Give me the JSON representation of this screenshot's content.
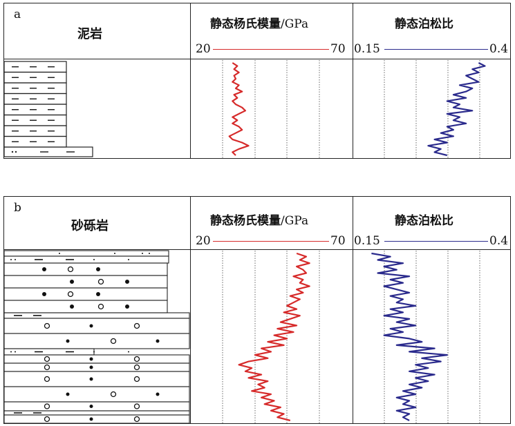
{
  "panels": [
    {
      "letter": "a",
      "lithology": "泥岩",
      "modulus_title": "静态杨氏模量",
      "modulus_unit": "/GPa",
      "modulus_min": "20",
      "modulus_max": "70",
      "poisson_title": "静态泊松比",
      "poisson_min": "0.15",
      "poisson_max": "0.4"
    },
    {
      "letter": "b",
      "lithology": "砂砾岩",
      "modulus_title": "静态杨氏模量",
      "modulus_unit": "/GPa",
      "modulus_min": "20",
      "modulus_max": "70",
      "poisson_title": "静态泊松比",
      "poisson_min": "0.15",
      "poisson_max": "0.4"
    }
  ],
  "colors": {
    "modulus": "#d62a2a",
    "poisson": "#2a2a8c",
    "grid": "#666666"
  },
  "chart_data": [
    {
      "type": "line",
      "panel": "a",
      "xlabel": "静态杨氏模量/GPa",
      "xlim": [
        20,
        70
      ],
      "series": [
        {
          "name": "静态杨氏模量",
          "values": [
            33,
            34.5,
            33.5,
            35,
            33.5,
            34,
            33,
            35,
            34,
            36,
            33.5,
            34.5,
            33,
            34,
            36,
            37,
            35,
            33,
            34.5,
            33,
            35,
            36,
            34,
            32,
            33,
            36,
            38,
            35,
            33,
            34
          ]
        },
        {
          "name": "静态泊松比",
          "values": [
            0.35,
            0.36,
            0.34,
            0.35,
            0.33,
            0.34,
            0.35,
            0.32,
            0.34,
            0.33,
            0.31,
            0.33,
            0.3,
            0.32,
            0.31,
            0.34,
            0.3,
            0.32,
            0.31,
            0.33,
            0.3,
            0.31,
            0.29,
            0.31,
            0.28,
            0.3,
            0.27,
            0.29,
            0.28,
            0.3
          ]
        }
      ]
    },
    {
      "type": "line",
      "panel": "b",
      "xlabel": "静态杨氏模量/GPa",
      "xlim": [
        20,
        70
      ],
      "series": [
        {
          "name": "静态杨氏模量",
          "values": [
            53,
            56,
            54,
            57,
            53,
            55,
            56,
            52,
            55,
            54,
            57,
            53,
            55,
            51,
            54,
            52,
            50,
            53,
            49,
            54,
            51,
            48,
            53,
            47,
            52,
            46,
            50,
            44,
            49,
            42,
            45,
            40,
            44,
            38,
            35,
            39,
            37,
            42,
            38,
            44,
            41,
            43,
            39,
            45,
            42,
            46,
            43,
            48,
            45,
            49,
            47,
            51
          ]
        },
        {
          "name": "静态泊松比",
          "values": [
            0.18,
            0.21,
            0.19,
            0.23,
            0.2,
            0.22,
            0.19,
            0.24,
            0.21,
            0.23,
            0.2,
            0.22,
            0.24,
            0.21,
            0.23,
            0.22,
            0.25,
            0.21,
            0.23,
            0.2,
            0.24,
            0.22,
            0.25,
            0.21,
            0.23,
            0.2,
            0.24,
            0.26,
            0.22,
            0.28,
            0.24,
            0.3,
            0.26,
            0.29,
            0.25,
            0.27,
            0.24,
            0.28,
            0.25,
            0.27,
            0.24,
            0.26,
            0.23,
            0.25,
            0.22,
            0.24,
            0.23,
            0.25,
            0.22,
            0.24,
            0.23,
            0.24
          ]
        }
      ]
    }
  ]
}
